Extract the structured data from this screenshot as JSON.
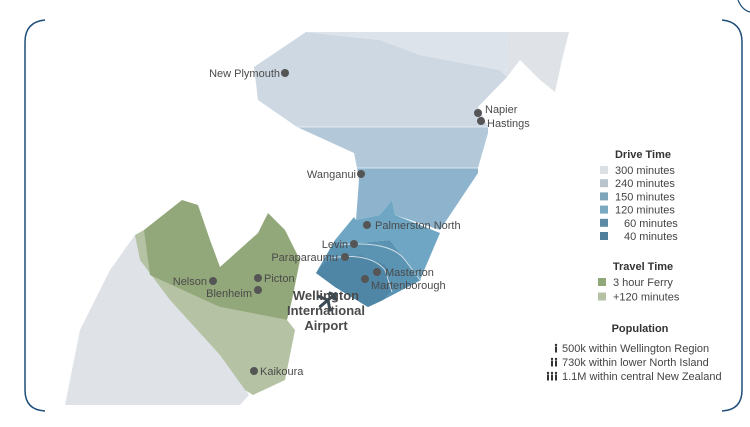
{
  "colors": {
    "frame": "#1f4e79",
    "land": "#dfe3e8",
    "band_300": "#cdd8e3",
    "band_240": "#b3c9da",
    "band_150": "#8db4cc",
    "band_120": "#6ea6c4",
    "band_60": "#5b93b3",
    "band_40": "#4f86a5",
    "ferry": "#93a87a",
    "plus120": "#b5c2a4"
  },
  "places": [
    {
      "name": "New Plymouth"
    },
    {
      "name": "Napier"
    },
    {
      "name": "Hastings"
    },
    {
      "name": "Wanganui"
    },
    {
      "name": "Palmerston North"
    },
    {
      "name": "Levin"
    },
    {
      "name": "Paraparaumu"
    },
    {
      "name": "Masterton"
    },
    {
      "name": "Martenborough"
    },
    {
      "name": "Nelson"
    },
    {
      "name": "Picton"
    },
    {
      "name": "Blenheim"
    },
    {
      "name": "Kaikoura"
    }
  ],
  "airport": {
    "line1": "Wellington",
    "line2": "International",
    "line3": "Airport",
    "icon": "airplane-icon"
  },
  "legend": {
    "drive_title": "Drive Time",
    "drive_items": [
      {
        "label": "300 minutes",
        "color": "#dcdfe3"
      },
      {
        "label": "240 minutes",
        "color": "#b9c3cc"
      },
      {
        "label": "150 minutes",
        "color": "#7fa5bb"
      },
      {
        "label": "120 minutes",
        "color": "#79a9c1"
      },
      {
        "label": "60 minutes",
        "color": "#5d8aa5"
      },
      {
        "label": "40 minutes",
        "color": "#4f7f9a"
      }
    ],
    "travel_title": "Travel Time",
    "travel_items": [
      {
        "label": "3 hour Ferry",
        "color": "#93a87a"
      },
      {
        "label": "+120 minutes",
        "color": "#b5c2a4"
      }
    ],
    "population_title": "Population",
    "population_items": [
      {
        "label": "500k within Wellington Region",
        "icon": "person-icon",
        "count": 1
      },
      {
        "label": "730k within lower North Island",
        "icon": "person-icon",
        "count": 2
      },
      {
        "label": "1.1M within central New Zealand",
        "icon": "person-icon",
        "count": 3
      }
    ]
  }
}
